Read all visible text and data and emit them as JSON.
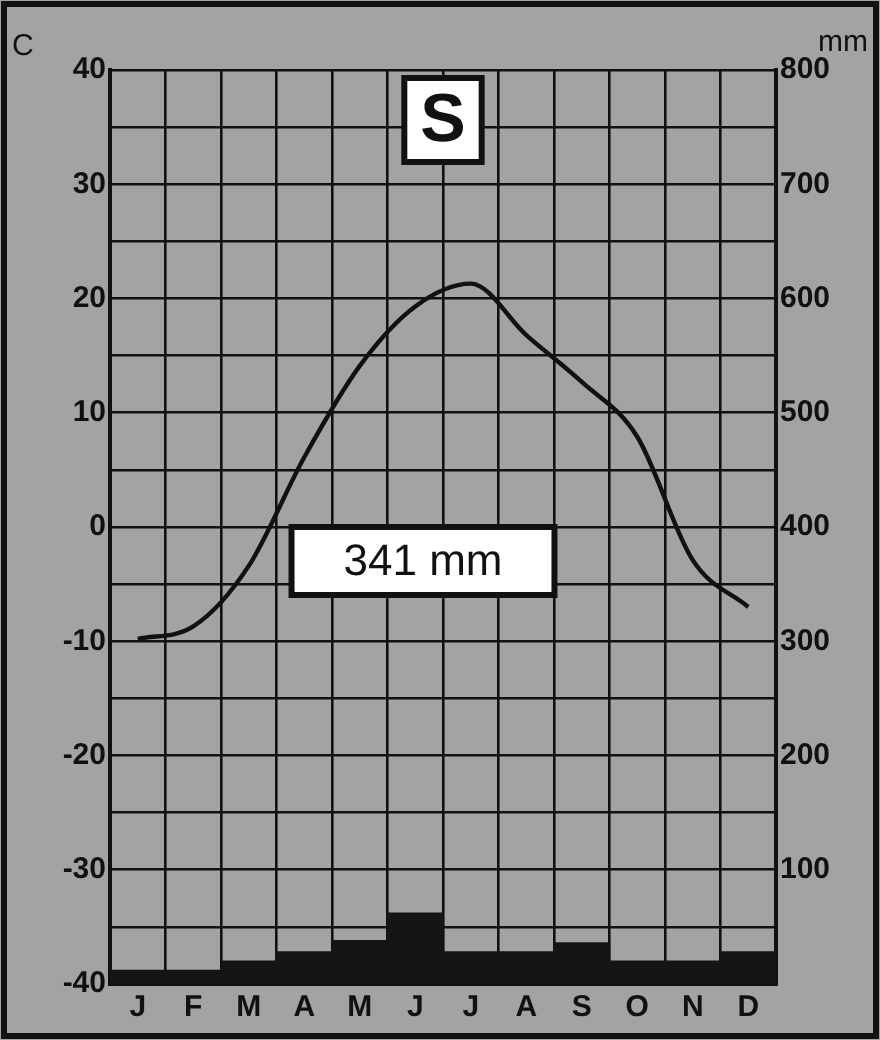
{
  "chart_data": {
    "type": "bar",
    "title": "S",
    "ylabel": "C",
    "y2label": "mm",
    "categories": [
      "J",
      "F",
      "M",
      "A",
      "M",
      "J",
      "J",
      "A",
      "S",
      "O",
      "N",
      "D"
    ],
    "series": [
      {
        "axis": "y2",
        "color": "#151515",
        "values": [
          12,
          12,
          20,
          28,
          38,
          62,
          28,
          28,
          36,
          20,
          20,
          28
        ]
      },
      {
        "type": "line",
        "axis": "y",
        "color": "#111111",
        "values": [
          -9.8,
          -8.7,
          -3.4,
          6.1,
          14.1,
          19.3,
          21.3,
          16.8,
          12.7,
          7.9,
          -2.9,
          -7
        ]
      }
    ],
    "ylim": [
      -40,
      40
    ],
    "yticks": [
      -40,
      {
        "value": -35,
        "label": null
      },
      -30,
      {
        "value": -25,
        "label": null
      },
      -20,
      {
        "value": -15,
        "label": null
      },
      -10,
      {
        "value": -5,
        "label": null
      },
      0,
      {
        "value": 5,
        "label": null
      },
      10,
      {
        "value": 15,
        "label": null
      },
      20,
      {
        "value": 25,
        "label": null
      },
      30,
      {
        "value": 35,
        "label": null
      },
      40
    ],
    "y2lim": [
      0,
      800
    ],
    "y2ticks": [
      100,
      200,
      300,
      400,
      500,
      600,
      700,
      800
    ],
    "grid": true,
    "legend": false,
    "marker": "none",
    "line_style": "solid",
    "annotations": [
      "341 mm"
    ]
  }
}
